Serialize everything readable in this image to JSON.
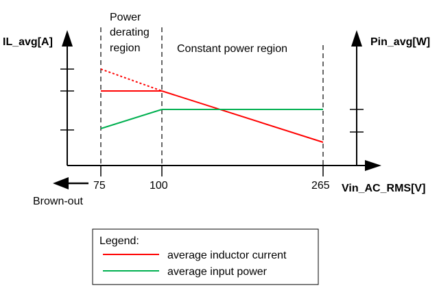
{
  "axes": {
    "left_label": "IL_avg[A]",
    "right_label": "Pin_avg[W]",
    "x_label": "Vin_AC_RMS[V]"
  },
  "regions": {
    "derating_line1": "Power",
    "derating_line2": "derating",
    "derating_line3": "region",
    "constant": "Constant power region"
  },
  "x_ticks": {
    "t75": "75",
    "t100": "100",
    "t265": "265"
  },
  "brownout_label": "Brown-out",
  "legend": {
    "title": "Legend:",
    "items": [
      {
        "label": "average inductor current",
        "color": "#ff0000"
      },
      {
        "label": "average input power",
        "color": "#00b050"
      }
    ]
  },
  "colors": {
    "current": "#ff0000",
    "power": "#00b050",
    "axis": "#000000"
  }
}
